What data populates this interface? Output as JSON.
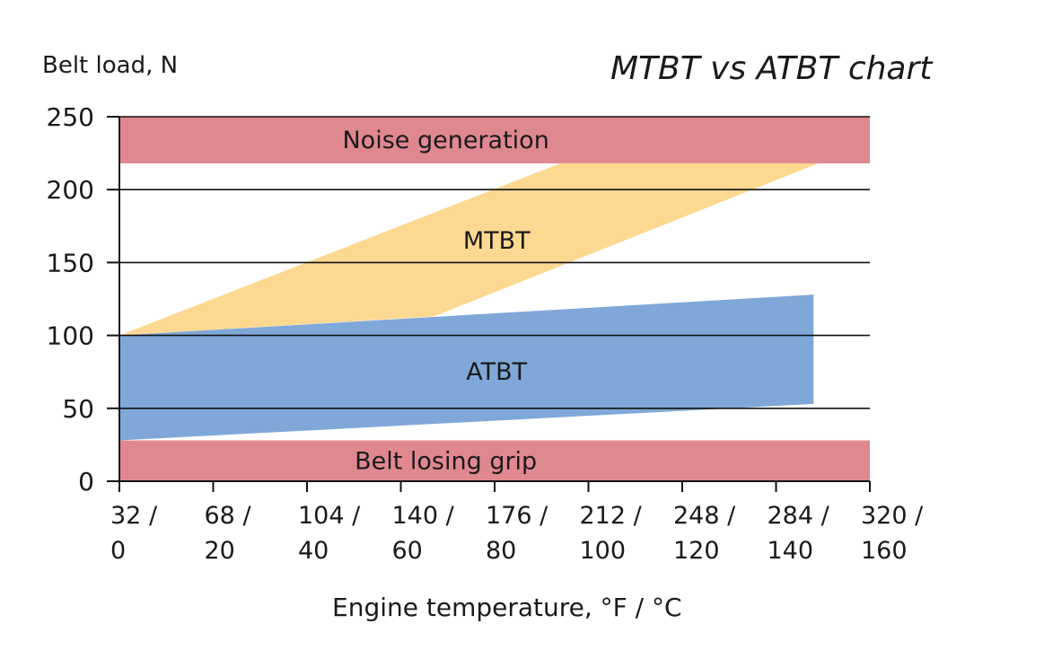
{
  "chart_data": {
    "type": "area",
    "title": "MTBT vs ATBT chart",
    "ylabel": "Belt load, N",
    "xlabel": "Engine temperature, °F / °C",
    "ylim": [
      0,
      250
    ],
    "yticks": [
      0,
      50,
      100,
      150,
      200,
      250
    ],
    "xlim": [
      0,
      160
    ],
    "x_ticks": [
      {
        "c": 0,
        "f": "32 /",
        "c_label": "0"
      },
      {
        "c": 20,
        "f": "68 /",
        "c_label": "20"
      },
      {
        "c": 40,
        "f": "104 /",
        "c_label": "40"
      },
      {
        "c": 60,
        "f": "140 /",
        "c_label": "60"
      },
      {
        "c": 80,
        "f": "176 /",
        "c_label": "80"
      },
      {
        "c": 100,
        "f": "212 /",
        "c_label": "100"
      },
      {
        "c": 120,
        "f": "248 /",
        "c_label": "120"
      },
      {
        "c": 140,
        "f": "284 /",
        "c_label": "140"
      },
      {
        "c": 160,
        "f": "320 /",
        "c_label": "160"
      }
    ],
    "grid_lines_y": [
      50,
      100,
      150,
      200,
      250
    ],
    "zones": [
      {
        "name": "Noise generation",
        "y_from": 218,
        "y_to": 250,
        "color": "#e08890"
      },
      {
        "name": "Belt losing grip",
        "y_from": 0,
        "y_to": 28,
        "color": "#e08890"
      }
    ],
    "series": [
      {
        "name": "MTBT",
        "color": "#fdd891",
        "polygon": [
          [
            0,
            100
          ],
          [
            94,
            218
          ],
          [
            149,
            218
          ],
          [
            67,
            113
          ]
        ]
      },
      {
        "name": "ATBT",
        "color": "#7fa8d8",
        "polygon": [
          [
            0,
            100
          ],
          [
            148,
            128
          ],
          [
            148,
            53
          ],
          [
            0,
            28
          ]
        ]
      }
    ]
  }
}
